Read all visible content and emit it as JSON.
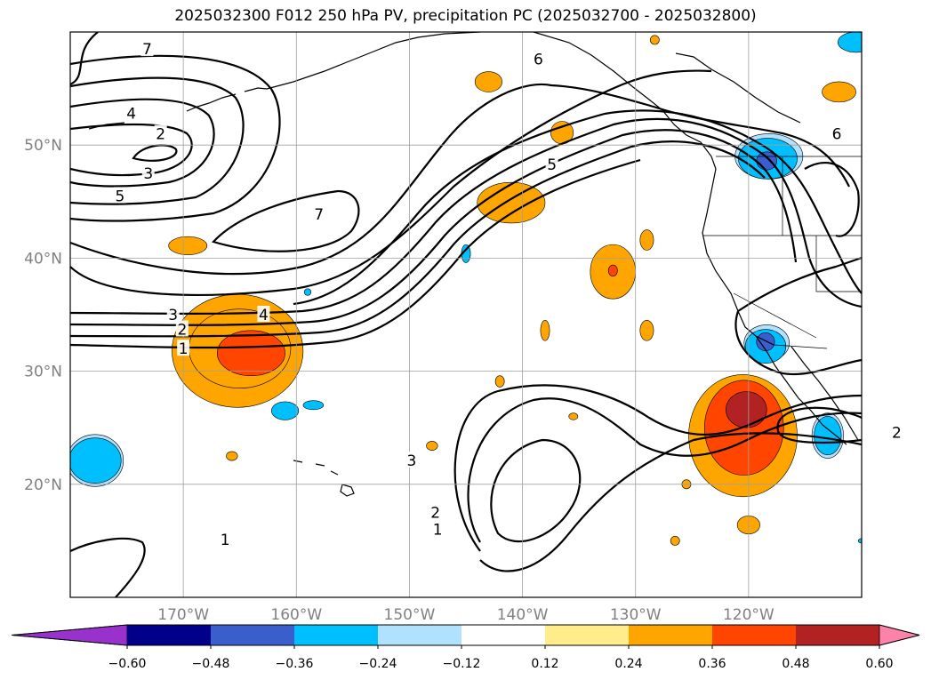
{
  "title": "2025032300 F012 250 hPa PV, precipitation PC (2025032700 - 2025032800)",
  "chart_data": {
    "type": "heatmap",
    "title": "2025032300 F012 250 hPa PV, precipitation PC (2025032700 - 2025032800)",
    "lat_ticks": [
      "50°N",
      "40°N",
      "30°N",
      "20°N"
    ],
    "lon_ticks": [
      "170°W",
      "160°W",
      "150°W",
      "140°W",
      "130°W",
      "120°W"
    ],
    "grid": true,
    "colorbar": {
      "orientation": "horizontal",
      "extend": "both",
      "bounds": [
        -0.6,
        -0.48,
        -0.36,
        -0.24,
        -0.12,
        0.12,
        0.24,
        0.36,
        0.48,
        0.6
      ],
      "tick_labels": [
        "−0.60",
        "−0.48",
        "−0.36",
        "−0.24",
        "−0.12",
        "0.12",
        "0.24",
        "0.36",
        "0.48",
        "0.60"
      ],
      "colors": [
        "#9932cc",
        "#00008b",
        "#3a5fcd",
        "#00bfff",
        "#b0e2ff",
        "#ffffff",
        "#ffec8b",
        "#ffa500",
        "#ff4500",
        "#b22222",
        "#ff82ab"
      ]
    },
    "contour_labels": [
      "1",
      "2",
      "3",
      "4",
      "5",
      "6",
      "7"
    ],
    "contour_label_positions": [
      {
        "text": "7",
        "lon": -173.2,
        "lat": 58.5
      },
      {
        "text": "4",
        "lon": -174.6,
        "lat": 52.8
      },
      {
        "text": "2",
        "lon": -172.0,
        "lat": 51.0
      },
      {
        "text": "3",
        "lon": -173.1,
        "lat": 47.5
      },
      {
        "text": "5",
        "lon": -175.6,
        "lat": 45.5
      },
      {
        "text": "7",
        "lon": -158.0,
        "lat": 43.9
      },
      {
        "text": "6",
        "lon": -138.6,
        "lat": 57.6
      },
      {
        "text": "5",
        "lon": -137.4,
        "lat": 48.3
      },
      {
        "text": "6",
        "lon": -112.2,
        "lat": 51.0
      },
      {
        "text": "3",
        "lon": -170.9,
        "lat": 35.0
      },
      {
        "text": "4",
        "lon": -162.9,
        "lat": 35.0
      },
      {
        "text": "2",
        "lon": -170.1,
        "lat": 33.7
      },
      {
        "text": "1",
        "lon": -170.0,
        "lat": 32.0
      },
      {
        "text": "3",
        "lon": -149.8,
        "lat": 22.1
      },
      {
        "text": "2",
        "lon": -147.7,
        "lat": 17.5
      },
      {
        "text": "1",
        "lon": -147.5,
        "lat": 16.0
      },
      {
        "text": "1",
        "lon": -166.3,
        "lat": 15.1
      },
      {
        "text": "2",
        "lon": -106.9,
        "lat": 24.6
      }
    ],
    "precip_blobs": [
      {
        "lon": -165.2,
        "lat": 31.8,
        "rx": 5.8,
        "ry": 5.0,
        "value": 0.26
      },
      {
        "lon": -165.0,
        "lat": 32.0,
        "rx": 4.5,
        "ry": 3.5,
        "value": 0.34
      },
      {
        "lon": -164.0,
        "lat": 31.6,
        "rx": 3.0,
        "ry": 2.0,
        "value": 0.4
      },
      {
        "lon": -120.5,
        "lat": 24.3,
        "rx": 4.8,
        "ry": 5.4,
        "value": 0.26
      },
      {
        "lon": -120.4,
        "lat": 25.0,
        "rx": 3.5,
        "ry": 4.2,
        "value": 0.38
      },
      {
        "lon": -120.2,
        "lat": 26.6,
        "rx": 1.8,
        "ry": 1.6,
        "value": 0.52
      },
      {
        "lon": -141.0,
        "lat": 44.9,
        "rx": 3.0,
        "ry": 1.8,
        "value": 0.27
      },
      {
        "lon": -132.0,
        "lat": 38.8,
        "rx": 2.0,
        "ry": 2.4,
        "value": 0.27
      },
      {
        "lon": -132.0,
        "lat": 38.9,
        "rx": 0.4,
        "ry": 0.5,
        "value": 0.4
      },
      {
        "lon": -169.6,
        "lat": 41.1,
        "rx": 1.7,
        "ry": 0.8,
        "value": 0.26
      },
      {
        "lon": -136.5,
        "lat": 51.1,
        "rx": 1.0,
        "ry": 1.0,
        "value": 0.26
      },
      {
        "lon": -143.0,
        "lat": 55.6,
        "rx": 1.2,
        "ry": 0.9,
        "value": 0.26
      },
      {
        "lon": -112.0,
        "lat": 54.7,
        "rx": 1.5,
        "ry": 0.9,
        "value": 0.26
      },
      {
        "lon": -120.0,
        "lat": 16.4,
        "rx": 1.0,
        "ry": 0.8,
        "value": 0.26
      },
      {
        "lon": -129.0,
        "lat": 41.6,
        "rx": 0.6,
        "ry": 0.9,
        "value": 0.26
      },
      {
        "lon": -129.0,
        "lat": 33.6,
        "rx": 0.6,
        "ry": 0.9,
        "value": 0.26
      },
      {
        "lon": -138.0,
        "lat": 33.6,
        "rx": 0.4,
        "ry": 0.9,
        "value": 0.26
      },
      {
        "lon": -165.7,
        "lat": 22.5,
        "rx": 0.5,
        "ry": 0.4,
        "value": 0.26
      },
      {
        "lon": -148.0,
        "lat": 23.4,
        "rx": 0.5,
        "ry": 0.4,
        "value": 0.26
      },
      {
        "lon": -135.5,
        "lat": 26.0,
        "rx": 0.4,
        "ry": 0.3,
        "value": 0.26
      },
      {
        "lon": -125.5,
        "lat": 20.0,
        "rx": 0.4,
        "ry": 0.4,
        "value": 0.26
      },
      {
        "lon": -126.5,
        "lat": 15.0,
        "rx": 0.4,
        "ry": 0.4,
        "value": 0.26
      },
      {
        "lon": -142.0,
        "lat": 29.1,
        "rx": 0.4,
        "ry": 0.5,
        "value": 0.26
      },
      {
        "lon": -128.3,
        "lat": 59.3,
        "rx": 0.4,
        "ry": 0.4,
        "value": 0.26
      },
      {
        "lon": -177.8,
        "lat": 22.1,
        "rx": 2.5,
        "ry": 2.3,
        "value": -0.18
      },
      {
        "lon": -177.8,
        "lat": 22.1,
        "rx": 2.3,
        "ry": 2.0,
        "value": -0.28
      },
      {
        "lon": -118.2,
        "lat": 49.0,
        "rx": 3.0,
        "ry": 2.0,
        "value": -0.18
      },
      {
        "lon": -118.3,
        "lat": 48.8,
        "rx": 2.6,
        "ry": 1.8,
        "value": -0.3
      },
      {
        "lon": -118.4,
        "lat": 48.6,
        "rx": 0.9,
        "ry": 0.8,
        "value": -0.4
      },
      {
        "lon": -118.4,
        "lat": 32.5,
        "rx": 2.0,
        "ry": 1.6,
        "value": -0.18
      },
      {
        "lon": -118.5,
        "lat": 32.2,
        "rx": 1.8,
        "ry": 1.5,
        "value": -0.3
      },
      {
        "lon": -118.5,
        "lat": 32.6,
        "rx": 0.8,
        "ry": 0.8,
        "value": -0.4
      },
      {
        "lon": -113.0,
        "lat": 24.3,
        "rx": 1.4,
        "ry": 2.0,
        "value": -0.18
      },
      {
        "lon": -113.0,
        "lat": 24.3,
        "rx": 1.2,
        "ry": 1.7,
        "value": -0.3
      },
      {
        "lon": -161.0,
        "lat": 26.5,
        "rx": 1.2,
        "ry": 0.8,
        "value": -0.28
      },
      {
        "lon": -158.5,
        "lat": 27.0,
        "rx": 0.9,
        "ry": 0.4,
        "value": -0.28
      },
      {
        "lon": -145.0,
        "lat": 40.4,
        "rx": 0.4,
        "ry": 0.8,
        "value": -0.28
      },
      {
        "lon": -110.5,
        "lat": 59.1,
        "rx": 1.6,
        "ry": 0.9,
        "value": -0.28
      },
      {
        "lon": -159.0,
        "lat": 37.0,
        "rx": 0.3,
        "ry": 0.3,
        "value": -0.28
      },
      {
        "lon": -110.0,
        "lat": 15.0,
        "rx": 0.3,
        "ry": 0.2,
        "value": -0.28
      }
    ]
  }
}
